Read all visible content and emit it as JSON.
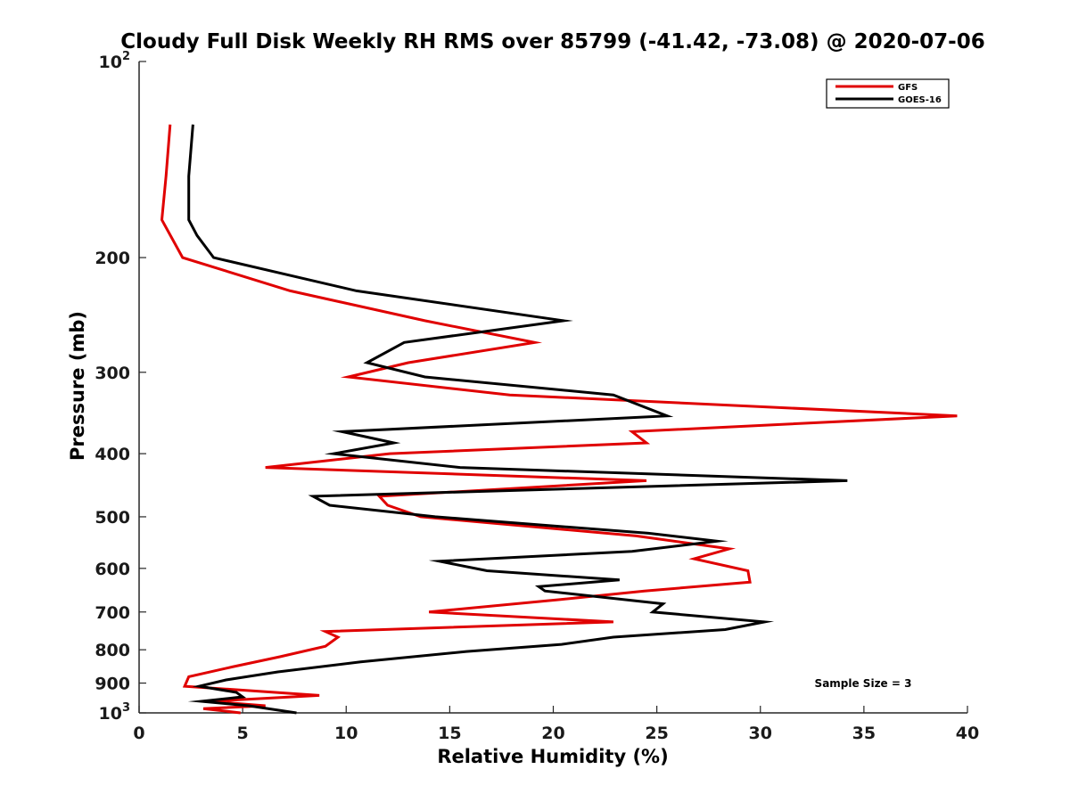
{
  "chart_data": {
    "type": "line",
    "title": "Cloudy Full Disk Weekly RH RMS over 85799 (-41.42, -73.08) @ 2020-07-06",
    "xlabel": "Relative Humidity (%)",
    "ylabel": "Pressure (mb)",
    "xlim": [
      0,
      40
    ],
    "ylim": [
      100,
      1000
    ],
    "y_scale": "log",
    "y_reversed": true,
    "grid": false,
    "legend_position": "top-right",
    "x_ticks": [
      0,
      5,
      10,
      15,
      20,
      25,
      30,
      35,
      40
    ],
    "x_tick_labels": [
      "0",
      "5",
      "10",
      "15",
      "20",
      "25",
      "30",
      "35",
      "40"
    ],
    "y_ticks": [
      100,
      200,
      300,
      400,
      500,
      600,
      700,
      800,
      900,
      1000
    ],
    "y_tick_labels": [
      {
        "base": "10",
        "exp": "2"
      },
      {
        "base": "200",
        "exp": ""
      },
      {
        "base": "300",
        "exp": ""
      },
      {
        "base": "400",
        "exp": ""
      },
      {
        "base": "500",
        "exp": ""
      },
      {
        "base": "600",
        "exp": ""
      },
      {
        "base": "700",
        "exp": ""
      },
      {
        "base": "800",
        "exp": ""
      },
      {
        "base": "900",
        "exp": ""
      },
      {
        "base": "10",
        "exp": "3"
      }
    ],
    "annotation": "Sample Size = 3",
    "series": [
      {
        "name": "GFS",
        "color": "#e00000",
        "points": [
          [
            1.5,
            125
          ],
          [
            1.3,
            150
          ],
          [
            1.1,
            175
          ],
          [
            2.1,
            200
          ],
          [
            7.3,
            225
          ],
          [
            13.8,
            250
          ],
          [
            19.1,
            270
          ],
          [
            13.0,
            290
          ],
          [
            10.1,
            305
          ],
          [
            17.9,
            325
          ],
          [
            39.5,
            350
          ],
          [
            23.8,
            370
          ],
          [
            24.5,
            385
          ],
          [
            12.1,
            400
          ],
          [
            6.1,
            420
          ],
          [
            24.5,
            440
          ],
          [
            11.6,
            465
          ],
          [
            12.0,
            480
          ],
          [
            13.6,
            500
          ],
          [
            24.0,
            535
          ],
          [
            28.5,
            560
          ],
          [
            26.8,
            580
          ],
          [
            29.4,
            605
          ],
          [
            29.5,
            630
          ],
          [
            24.4,
            650
          ],
          [
            20.3,
            670
          ],
          [
            14.0,
            700
          ],
          [
            22.9,
            725
          ],
          [
            9.0,
            750
          ],
          [
            9.6,
            765
          ],
          [
            9.0,
            790
          ],
          [
            6.8,
            820
          ],
          [
            4.5,
            850
          ],
          [
            2.4,
            880
          ],
          [
            2.2,
            910
          ],
          [
            8.7,
            940
          ],
          [
            3.4,
            960
          ],
          [
            6.1,
            975
          ],
          [
            3.1,
            985
          ],
          [
            4.9,
            1000
          ]
        ]
      },
      {
        "name": "GOES-16",
        "color": "#000000",
        "points": [
          [
            2.6,
            125
          ],
          [
            2.4,
            150
          ],
          [
            2.4,
            175
          ],
          [
            2.8,
            185
          ],
          [
            3.6,
            200
          ],
          [
            10.5,
            225
          ],
          [
            20.5,
            250
          ],
          [
            12.8,
            270
          ],
          [
            11.0,
            290
          ],
          [
            13.8,
            305
          ],
          [
            22.9,
            325
          ],
          [
            25.5,
            350
          ],
          [
            9.8,
            370
          ],
          [
            12.3,
            385
          ],
          [
            9.4,
            400
          ],
          [
            15.5,
            420
          ],
          [
            34.2,
            440
          ],
          [
            8.4,
            465
          ],
          [
            9.2,
            480
          ],
          [
            14.3,
            500
          ],
          [
            24.6,
            530
          ],
          [
            27.9,
            545
          ],
          [
            23.8,
            565
          ],
          [
            14.5,
            585
          ],
          [
            16.8,
            605
          ],
          [
            23.2,
            625
          ],
          [
            19.3,
            640
          ],
          [
            19.6,
            650
          ],
          [
            25.3,
            680
          ],
          [
            24.8,
            700
          ],
          [
            30.2,
            725
          ],
          [
            28.3,
            745
          ],
          [
            22.9,
            765
          ],
          [
            20.4,
            785
          ],
          [
            15.8,
            805
          ],
          [
            10.7,
            835
          ],
          [
            6.7,
            865
          ],
          [
            4.2,
            890
          ],
          [
            2.9,
            910
          ],
          [
            4.7,
            930
          ],
          [
            5.0,
            945
          ],
          [
            3.0,
            960
          ],
          [
            5.3,
            975
          ],
          [
            7.6,
            1000
          ]
        ]
      }
    ]
  }
}
